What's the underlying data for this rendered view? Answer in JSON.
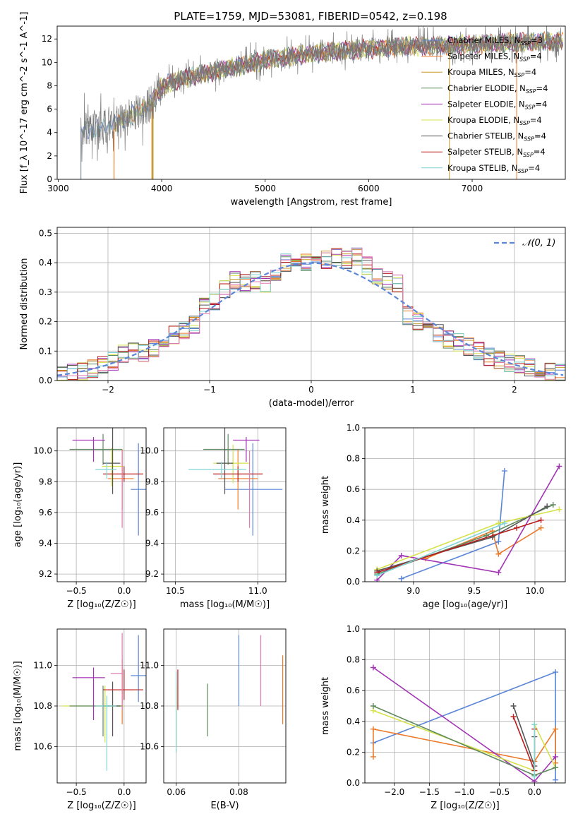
{
  "title": "PLATE=1759, MJD=53081, FIBERID=0542, z=0.198",
  "colors": {
    "c0": "#5b86d8",
    "c1": "#ec7a2a",
    "c2": "#c79a2a",
    "c3": "#5f8a5f",
    "c4": "#a233b4",
    "c5": "#d6e24a",
    "c6": "#555555",
    "c7": "#b81c1c",
    "c8": "#7fd4d4",
    "c9": "#e07ab0",
    "norm": "#5b86d8"
  },
  "chart_data": [
    {
      "id": "spectrum",
      "type": "line",
      "xlabel": "wavelength [Angstrom, rest frame]",
      "ylabel": "Flux [f_λ 10^-17 erg cm^-2 s^-1 A^-1]",
      "xlim": [
        2990,
        7900
      ],
      "ylim": [
        0,
        13.1
      ],
      "xticks": [
        "3000",
        "4000",
        "5000",
        "6000",
        "7000"
      ],
      "yticks": [
        "0",
        "2",
        "4",
        "6",
        "8",
        "10",
        "12"
      ],
      "legend_position": "upper-right",
      "legend": [
        {
          "label": "Chabrier MILES, N_SSP=3",
          "color": "c0"
        },
        {
          "label": "Salpeter MILES, N_SSP=4",
          "color": "c1"
        },
        {
          "label": "Kroupa MILES, N_SSP=4",
          "color": "c2"
        },
        {
          "label": "Chabrier ELODIE, N_SSP=4",
          "color": "c3"
        },
        {
          "label": "Salpeter ELODIE, N_SSP=4",
          "color": "c4"
        },
        {
          "label": "Kroupa ELODIE, N_SSP=4",
          "color": "c5"
        },
        {
          "label": "Chabrier STELIB, N_SSP=4",
          "color": "c6"
        },
        {
          "label": "Salpeter STELIB, N_SSP=4",
          "color": "c7"
        },
        {
          "label": "Kroupa STELIB, N_SSP=4",
          "color": "c8"
        }
      ],
      "data_trend": [
        [
          3220,
          0
        ],
        [
          3220,
          4.2
        ],
        [
          3400,
          4.4
        ],
        [
          3550,
          4.8
        ],
        [
          3700,
          5.4
        ],
        [
          3900,
          6.5
        ],
        [
          4000,
          8.0
        ],
        [
          4200,
          8.6
        ],
        [
          4500,
          9.2
        ],
        [
          4800,
          9.8
        ],
        [
          5000,
          10.2
        ],
        [
          5500,
          10.8
        ],
        [
          6000,
          11.2
        ],
        [
          6500,
          11.4
        ],
        [
          7000,
          11.5
        ],
        [
          7400,
          11.7
        ],
        [
          7900,
          11.8
        ]
      ],
      "model_cutoffs": [
        3210,
        3540,
        3900,
        3920,
        6780,
        7430
      ]
    },
    {
      "id": "residuals",
      "type": "step",
      "xlabel": "(data-model)/error",
      "ylabel": "Normed distribution",
      "xlim": [
        -2.5,
        2.5
      ],
      "ylim": [
        0,
        0.52
      ],
      "xticks": [
        "−2",
        "−1",
        "0",
        "1",
        "2"
      ],
      "yticks": [
        "0.0",
        "0.1",
        "0.2",
        "0.3",
        "0.4",
        "0.5"
      ],
      "legend": [
        {
          "label": "𝒩(0, 1)",
          "color": "norm"
        }
      ],
      "bin_width": 0.1,
      "bins_center": [
        -2.45,
        -2.35,
        -2.25,
        -2.15,
        -2.05,
        -1.95,
        -1.85,
        -1.75,
        -1.65,
        -1.55,
        -1.45,
        -1.35,
        -1.25,
        -1.15,
        -1.05,
        -0.95,
        -0.85,
        -0.75,
        -0.65,
        -0.55,
        -0.45,
        -0.35,
        -0.25,
        -0.15,
        -0.05,
        0.05,
        0.15,
        0.25,
        0.35,
        0.45,
        0.55,
        0.65,
        0.75,
        0.85,
        0.95,
        1.05,
        1.15,
        1.25,
        1.35,
        1.45,
        1.55,
        1.65,
        1.75,
        1.85,
        1.95,
        2.05,
        2.15,
        2.25,
        2.35,
        2.45
      ],
      "base_values": [
        0.02,
        0.025,
        0.03,
        0.04,
        0.055,
        0.065,
        0.09,
        0.1,
        0.095,
        0.11,
        0.145,
        0.155,
        0.17,
        0.19,
        0.25,
        0.265,
        0.31,
        0.34,
        0.33,
        0.34,
        0.33,
        0.37,
        0.4,
        0.4,
        0.4,
        0.39,
        0.41,
        0.42,
        0.41,
        0.42,
        0.39,
        0.35,
        0.34,
        0.33,
        0.22,
        0.2,
        0.175,
        0.16,
        0.14,
        0.13,
        0.115,
        0.1,
        0.08,
        0.07,
        0.06,
        0.055,
        0.045,
        0.035,
        0.03,
        0.025
      ]
    },
    {
      "id": "age-vs-Z",
      "type": "errorbar",
      "xlabel": "Z [log₁₀(Z/Z☉)]",
      "ylabel": "age  [log₁₀(age/yr)]",
      "xlim": [
        -0.7,
        0.23
      ],
      "ylim": [
        9.15,
        10.15
      ],
      "xticks": [
        "−0.5",
        "0.0"
      ],
      "yticks": [
        "9.2",
        "9.4",
        "9.6",
        "9.8",
        "10.0"
      ],
      "points": [
        {
          "x": 0.15,
          "y": 9.75,
          "xerr": [
            0.08,
            0.08
          ],
          "yerr": [
            0.3,
            0.3
          ],
          "color": "c0"
        },
        {
          "x": -0.02,
          "y": 9.82,
          "xerr": [
            0.15,
            0.12
          ],
          "yerr": [
            0.2,
            0.19
          ],
          "color": "c1"
        },
        {
          "x": -0.13,
          "y": 9.9,
          "xerr": [
            0.1,
            0.12
          ],
          "yerr": [
            0.13,
            0.12
          ],
          "color": "c5"
        },
        {
          "x": -0.22,
          "y": 10.01,
          "xerr": [
            0.35,
            0.2
          ],
          "yerr": [
            0.1,
            0.1
          ],
          "color": "c3"
        },
        {
          "x": -0.32,
          "y": 10.07,
          "xerr": [
            0.22,
            0.12
          ],
          "yerr": [
            0.14,
            0.02
          ],
          "color": "c4"
        },
        {
          "x": -0.12,
          "y": 9.92,
          "xerr": [
            0.1,
            0.08
          ],
          "yerr": [
            0.2,
            0.73
          ],
          "color": "c6"
        },
        {
          "x": 0.0,
          "y": 9.85,
          "xerr": [
            0.22,
            0.2
          ],
          "yerr": [
            0.05,
            0.05
          ],
          "color": "c7"
        },
        {
          "x": -0.18,
          "y": 9.88,
          "xerr": [
            0.12,
            0.1
          ],
          "yerr": [
            0.06,
            0.05
          ],
          "color": "c8"
        },
        {
          "x": -0.02,
          "y": 9.85,
          "xerr": [
            0.0,
            0.0
          ],
          "yerr": [
            0.35,
            0.15
          ],
          "color": "c9"
        }
      ]
    },
    {
      "id": "age-vs-mass",
      "type": "errorbar",
      "xlabel": "mass [log₁₀(M/M☉)]",
      "ylabel": "",
      "xlim": [
        10.43,
        11.17
      ],
      "ylim": [
        9.15,
        10.15
      ],
      "xticks": [
        "10.5",
        "11.0"
      ],
      "yticks": [
        "9.2",
        "9.4",
        "9.6",
        "9.8",
        "10.0"
      ],
      "points": [
        {
          "x": 10.97,
          "y": 9.75,
          "xerr": [
            0.17,
            0.18
          ],
          "yerr": [
            0.3,
            0.3
          ],
          "color": "c0"
        },
        {
          "x": 10.88,
          "y": 9.82,
          "xerr": [
            0.12,
            0.12
          ],
          "yerr": [
            0.2,
            0.19
          ],
          "color": "c1"
        },
        {
          "x": 10.85,
          "y": 9.92,
          "xerr": [
            0.12,
            0.1
          ],
          "yerr": [
            0.13,
            0.12
          ],
          "color": "c5"
        },
        {
          "x": 10.82,
          "y": 10.01,
          "xerr": [
            0.15,
            0.1
          ],
          "yerr": [
            0.1,
            0.1
          ],
          "color": "c3"
        },
        {
          "x": 10.93,
          "y": 10.07,
          "xerr": [
            0.08,
            0.08
          ],
          "yerr": [
            0.14,
            0.02
          ],
          "color": "c4"
        },
        {
          "x": 10.8,
          "y": 9.92,
          "xerr": [
            0.05,
            0.05
          ],
          "yerr": [
            0.2,
            0.73
          ],
          "color": "c6"
        },
        {
          "x": 10.88,
          "y": 9.85,
          "xerr": [
            0.15,
            0.15
          ],
          "yerr": [
            0.05,
            0.05
          ],
          "color": "c7"
        },
        {
          "x": 10.78,
          "y": 9.88,
          "xerr": [
            0.2,
            0.15
          ],
          "yerr": [
            0.06,
            0.05
          ],
          "color": "c8"
        },
        {
          "x": 10.95,
          "y": 9.85,
          "xerr": [
            0.0,
            0.0
          ],
          "yerr": [
            0.35,
            0.15
          ],
          "color": "c9"
        }
      ]
    },
    {
      "id": "weight-vs-age",
      "type": "line",
      "xlabel": "age  [log₁₀(age/yr)]",
      "ylabel": "mass weight",
      "xlim": [
        8.6,
        10.25
      ],
      "ylim": [
        0,
        1
      ],
      "xticks": [
        "9.0",
        "9.5",
        "10.0"
      ],
      "yticks": [
        "0.0",
        "0.2",
        "0.4",
        "0.6",
        "0.8",
        "1.0"
      ],
      "series": [
        {
          "color": "c0",
          "x": [
            8.9,
            9.7,
            9.75
          ],
          "y": [
            0.02,
            0.26,
            0.72
          ]
        },
        {
          "color": "c1",
          "x": [
            9.1,
            9.65,
            9.7,
            10.05
          ],
          "y": [
            0.15,
            0.33,
            0.18,
            0.35
          ]
        },
        {
          "color": "c3",
          "x": [
            8.7,
            9.6,
            10.15
          ],
          "y": [
            0.05,
            0.3,
            0.5
          ]
        },
        {
          "color": "c4",
          "x": [
            8.7,
            8.9,
            9.7,
            10.2
          ],
          "y": [
            0.01,
            0.17,
            0.06,
            0.75
          ]
        },
        {
          "color": "c5",
          "x": [
            8.7,
            9.7,
            10.2
          ],
          "y": [
            0.08,
            0.38,
            0.47
          ]
        },
        {
          "color": "c6",
          "x": [
            8.7,
            9.65,
            10.1
          ],
          "y": [
            0.07,
            0.29,
            0.49
          ]
        },
        {
          "color": "c7",
          "x": [
            8.7,
            9.85,
            10.05
          ],
          "y": [
            0.06,
            0.35,
            0.4
          ]
        },
        {
          "color": "c8",
          "x": [
            8.7,
            9.75
          ],
          "y": [
            0.04,
            0.38
          ]
        }
      ]
    },
    {
      "id": "mass-vs-Z",
      "type": "errorbar",
      "xlabel": "Z [log₁₀(Z/Z☉)]",
      "ylabel": "mass [log₁₀(M/M☉)]",
      "xlim": [
        -0.7,
        0.23
      ],
      "ylim": [
        10.42,
        11.18
      ],
      "xticks": [
        "−0.5",
        "0.0"
      ],
      "yticks": [
        "10.6",
        "10.8",
        "11.0"
      ],
      "points": [
        {
          "x": 0.15,
          "y": 10.95,
          "xerr": [
            0.08,
            0.08
          ],
          "yerr": [
            0.13,
            0.2
          ],
          "color": "c0"
        },
        {
          "x": -0.02,
          "y": 10.88,
          "xerr": [
            0.15,
            0.12
          ],
          "yerr": [
            0.17,
            0.15
          ],
          "color": "c1"
        },
        {
          "x": -0.2,
          "y": 10.8,
          "xerr": [
            0.45,
            0.2
          ],
          "yerr": [
            0.18,
            0.1
          ],
          "color": "c5"
        },
        {
          "x": -0.22,
          "y": 10.8,
          "xerr": [
            0.35,
            0.2
          ],
          "yerr": [
            0.15,
            0.1
          ],
          "color": "c3"
        },
        {
          "x": -0.32,
          "y": 10.94,
          "xerr": [
            0.22,
            0.12
          ],
          "yerr": [
            0.21,
            0.05
          ],
          "color": "c4"
        },
        {
          "x": -0.12,
          "y": 10.8,
          "xerr": [
            0.1,
            0.08
          ],
          "yerr": [
            0.15,
            0.12
          ],
          "color": "c6"
        },
        {
          "x": 0.0,
          "y": 10.88,
          "xerr": [
            0.22,
            0.2
          ],
          "yerr": [
            0.05,
            0.1
          ],
          "color": "c7"
        },
        {
          "x": -0.18,
          "y": 10.8,
          "xerr": [
            0.12,
            0.1
          ],
          "yerr": [
            0.32,
            0.05
          ],
          "color": "c8"
        },
        {
          "x": -0.02,
          "y": 10.96,
          "xerr": [
            0.12,
            0.0
          ],
          "yerr": [
            0.18,
            0.2
          ],
          "color": "c9"
        }
      ]
    },
    {
      "id": "mass-vs-ebv",
      "type": "errorbar",
      "xlabel": "E(B-V)",
      "ylabel": "",
      "xlim": [
        0.056,
        0.095
      ],
      "ylim": [
        10.42,
        11.18
      ],
      "xticks": [
        "0.06",
        "0.08"
      ],
      "yticks": [
        "10.6",
        "10.8",
        "11.0"
      ],
      "points": [
        {
          "x": 0.08,
          "y": 10.95,
          "yerr": [
            0.15,
            0.2
          ],
          "color": "c0"
        },
        {
          "x": 0.094,
          "y": 10.88,
          "yerr": [
            0.17,
            0.17
          ],
          "color": "c1"
        },
        {
          "x": 0.06,
          "y": 10.8,
          "yerr": [
            0.2,
            0.1
          ],
          "color": "c5"
        },
        {
          "x": 0.07,
          "y": 10.78,
          "yerr": [
            0.13,
            0.13
          ],
          "color": "c3"
        },
        {
          "x": 0.06,
          "y": 10.87,
          "yerr": [
            0.3,
            0.1
          ],
          "color": "c8"
        },
        {
          "x": 0.0605,
          "y": 10.88,
          "yerr": [
            0.1,
            0.1
          ],
          "color": "c7"
        },
        {
          "x": 0.087,
          "y": 10.98,
          "yerr": [
            0.18,
            0.17
          ],
          "color": "c9"
        }
      ]
    },
    {
      "id": "weight-vs-Z",
      "type": "line",
      "xlabel": "Z [log₁₀(Z/Z☉)]",
      "ylabel": "mass weight",
      "xlim": [
        -2.42,
        0.44
      ],
      "ylim": [
        0,
        1
      ],
      "xticks": [
        "−2.0",
        "−1.5",
        "−1.0",
        "−0.5",
        "0.0"
      ],
      "yticks": [
        "0.0",
        "0.2",
        "0.4",
        "0.6",
        "0.8",
        "1.0"
      ],
      "series": [
        {
          "color": "c0",
          "x": [
            -2.3,
            0.3,
            0.3
          ],
          "y": [
            0.26,
            0.72,
            0.02
          ]
        },
        {
          "color": "c1",
          "x": [
            -2.3,
            -2.3,
            0.0,
            0.3,
            0.3
          ],
          "y": [
            0.17,
            0.35,
            0.14,
            0.35,
            0.13
          ]
        },
        {
          "color": "c4",
          "x": [
            -2.3,
            0.0,
            0.3
          ],
          "y": [
            0.75,
            0.01,
            0.17
          ]
        },
        {
          "color": "c5",
          "x": [
            -2.3,
            0.0,
            0.0,
            0.3
          ],
          "y": [
            0.47,
            0.08,
            0.38,
            0.1
          ]
        },
        {
          "color": "c3",
          "x": [
            -2.3,
            0.0,
            0.3
          ],
          "y": [
            0.5,
            0.05,
            0.1
          ]
        },
        {
          "color": "c6",
          "x": [
            -0.3,
            0.0,
            0.0
          ],
          "y": [
            0.5,
            0.11,
            0.3
          ]
        },
        {
          "color": "c7",
          "x": [
            -0.3,
            0.0,
            0.0
          ],
          "y": [
            0.43,
            0.08,
            0.35
          ]
        },
        {
          "color": "c8",
          "x": [
            0.0,
            0.0
          ],
          "y": [
            0.04,
            0.38
          ]
        }
      ]
    }
  ]
}
